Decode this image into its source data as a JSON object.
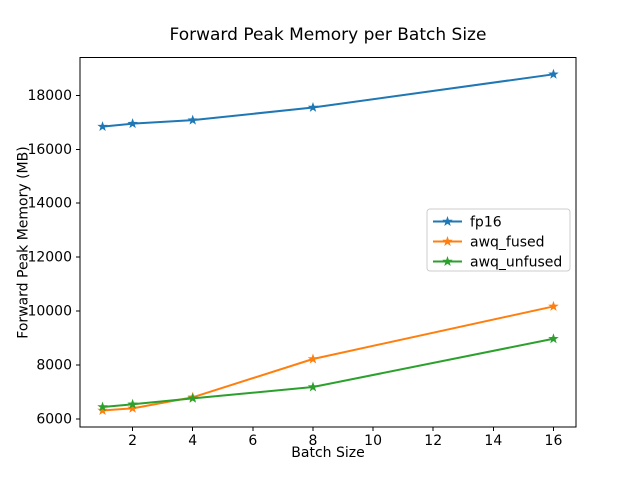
{
  "figure": {
    "title": "Forward Peak Memory per Batch Size",
    "xlabel": "Batch Size",
    "ylabel": "Forward Peak Memory (MB)",
    "background_color": "#ffffff"
  },
  "chart_data": {
    "type": "line",
    "title": "Forward Peak Memory per Batch Size",
    "xlabel": "Batch Size",
    "ylabel": "Forward Peak Memory (MB)",
    "x": [
      1,
      2,
      4,
      8,
      16
    ],
    "series": [
      {
        "name": "fp16",
        "color": "#1f77b4",
        "marker": "star",
        "values": [
          16840,
          16950,
          17080,
          17550,
          18780
        ]
      },
      {
        "name": "awq_fused",
        "color": "#ff7f0e",
        "marker": "star",
        "values": [
          6310,
          6390,
          6800,
          8220,
          10170
        ]
      },
      {
        "name": "awq_unfused",
        "color": "#2ca02c",
        "marker": "star",
        "values": [
          6440,
          6540,
          6760,
          7180,
          8970
        ]
      }
    ],
    "xlim": [
      0.25,
      16.75
    ],
    "ylim": [
      5690,
      19400
    ],
    "xticks": [
      2,
      4,
      6,
      8,
      10,
      12,
      14,
      16
    ],
    "yticks": [
      6000,
      8000,
      10000,
      12000,
      14000,
      16000,
      18000
    ],
    "grid": false,
    "legend": {
      "position": "center-right",
      "entries": [
        "fp16",
        "awq_fused",
        "awq_unfused"
      ],
      "border_color": "#cccccc",
      "background_color": "#ffffff"
    },
    "axis_color": "#000000"
  }
}
